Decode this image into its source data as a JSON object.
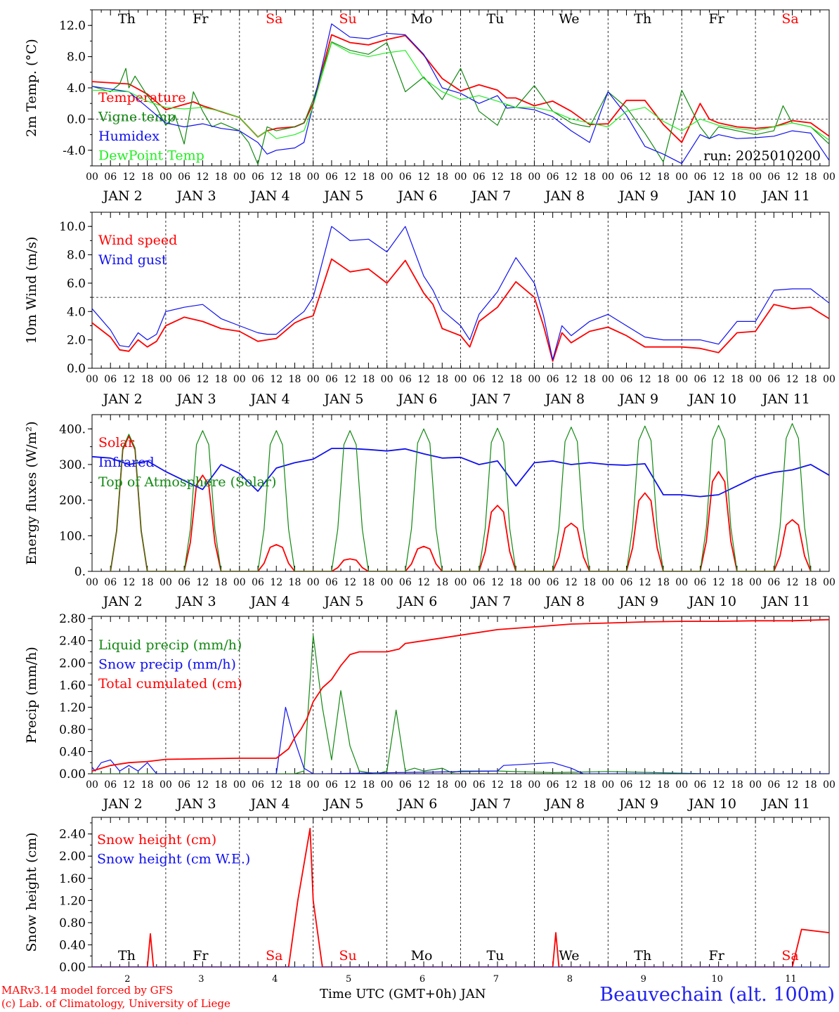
{
  "colors": {
    "red": "#ff0000",
    "green": "#118811",
    "blue": "#1010ee",
    "lightgreen": "#22ee22",
    "black": "#000000"
  },
  "footer": {
    "model": "MARv3.14 model forced by GFS",
    "copyright": "(c) Lab. of Climatology, University of Liege",
    "time_axis": "Time UTC (GMT+0h) JAN",
    "station": "Beauvechain (alt. 100m)"
  },
  "chart_data": [
    {
      "type": "line",
      "ylabel": "2m Temp. (°C)",
      "ylim": [
        -6,
        14
      ],
      "yticks": [
        "12.0",
        "8.0",
        "4.0",
        "0.0",
        "-4.0"
      ],
      "ytick_values": [
        12,
        8,
        4,
        0,
        -4
      ],
      "ref_line": 0,
      "day_names": [
        "Th",
        "Fr",
        "Sa",
        "Su",
        "Mo",
        "Tu",
        "We",
        "Th",
        "Fr",
        "Sa"
      ],
      "weekend_days": [
        2,
        3,
        9
      ],
      "run_label": "run: 2025010200",
      "x_unit": "hours since JAN 2 00 UTC",
      "series": [
        {
          "name": "Temperature",
          "color": "red",
          "x": [
            0,
            12,
            18,
            24,
            33,
            36,
            48,
            54,
            57,
            60,
            66,
            69,
            72,
            78,
            84,
            90,
            96,
            102,
            108,
            114,
            120,
            126,
            132,
            135,
            138,
            144,
            150,
            156,
            162,
            168,
            174,
            180,
            186,
            192,
            198,
            201,
            204,
            210,
            216,
            222,
            228,
            234,
            240
          ],
          "y": [
            4.8,
            4.5,
            3.2,
            1.2,
            2.2,
            1.7,
            0.2,
            -2.3,
            -1.5,
            -1.2,
            -1.0,
            -0.5,
            2,
            10.8,
            9.8,
            9.5,
            10.2,
            10.7,
            8.2,
            5.2,
            3.6,
            4.4,
            3.7,
            2.7,
            2.7,
            1.7,
            2.3,
            1.0,
            -0.7,
            -0.6,
            2.4,
            2.4,
            -0.7,
            -3.0,
            2.0,
            0,
            -0.5,
            -1.0,
            -1.2,
            -1.0,
            -0.2,
            -0.5,
            -2.2
          ]
        },
        {
          "name": "Vigne temp",
          "color": "green",
          "x": [
            0,
            6,
            9,
            11,
            12,
            14,
            18,
            21,
            24,
            27,
            30,
            33,
            36,
            39,
            42,
            48,
            51,
            54,
            57,
            60,
            66,
            69,
            72,
            78,
            84,
            90,
            96,
            102,
            108,
            114,
            120,
            126,
            132,
            135,
            138,
            144,
            150,
            156,
            159,
            162,
            168,
            174,
            180,
            186,
            192,
            198,
            201,
            204,
            210,
            216,
            222,
            225,
            228,
            234,
            240
          ],
          "y": [
            4.2,
            3.5,
            4.5,
            6.5,
            4,
            5.5,
            3,
            1.5,
            -0.8,
            0.5,
            -3.2,
            3.5,
            1,
            -1,
            -0.5,
            -1.5,
            -3,
            -5.8,
            -1,
            -1.5,
            -1,
            -0.5,
            2.5,
            9.9,
            8.8,
            8.3,
            9.8,
            3.5,
            5.4,
            2.5,
            6.5,
            1,
            -0.8,
            1.8,
            1.5,
            4.3,
            1,
            -0.5,
            -0.8,
            -1,
            3.5,
            1.5,
            -1.8,
            -5.5,
            3.7,
            -1,
            -2.5,
            -1,
            -1.5,
            -2,
            -1.5,
            1.7,
            -0.5,
            -1,
            -3.2
          ]
        },
        {
          "name": "Humidex",
          "color": "blue",
          "x": [
            0,
            12,
            18,
            24,
            30,
            36,
            42,
            48,
            54,
            57,
            60,
            66,
            69,
            72,
            78,
            84,
            90,
            96,
            102,
            108,
            114,
            120,
            126,
            132,
            135,
            138,
            144,
            150,
            156,
            162,
            168,
            174,
            180,
            186,
            192,
            198,
            201,
            204,
            210,
            216,
            222,
            228,
            234,
            240
          ],
          "y": [
            4.2,
            3.5,
            1.5,
            -0.5,
            -1,
            -0.6,
            -1.2,
            -1.5,
            -3,
            -4.5,
            -4,
            -3.7,
            -3.0,
            1.8,
            12.2,
            10.5,
            10.3,
            11,
            10.8,
            8.3,
            4,
            3.3,
            2.0,
            3,
            1.4,
            1.5,
            1.2,
            0.3,
            -1.5,
            -3.0,
            3.5,
            0.5,
            -3.5,
            -4.5,
            -5.7,
            -2,
            -2.5,
            -2,
            -2.5,
            -2.4,
            -2.2,
            -1.5,
            -1.8,
            -5.3
          ]
        },
        {
          "name": "DewPoint Temp",
          "color": "lightgreen",
          "x": [
            0,
            12,
            18,
            24,
            30,
            36,
            42,
            48,
            54,
            57,
            60,
            66,
            69,
            72,
            78,
            84,
            90,
            96,
            102,
            108,
            114,
            120,
            126,
            132,
            138,
            144,
            150,
            156,
            162,
            168,
            174,
            180,
            186,
            192,
            198,
            204,
            210,
            216,
            222,
            228,
            234,
            240
          ],
          "y": [
            3.7,
            3.5,
            2.3,
            1.5,
            1.3,
            1.5,
            1.0,
            0.2,
            -2.3,
            -1.5,
            -2.5,
            -2,
            -1.5,
            1.7,
            9.8,
            8.5,
            8,
            8.5,
            8.8,
            5.2,
            3.5,
            2.5,
            3,
            2.3,
            1.5,
            1.5,
            1,
            0,
            -0.5,
            -1,
            1.0,
            1.5,
            -0.3,
            -1.5,
            0,
            -0.8,
            -1.2,
            -1.5,
            -1.0,
            -0.5,
            -1.0,
            -2.7
          ]
        }
      ]
    },
    {
      "type": "line",
      "ylabel": "10m Wind (m/s)",
      "ylim": [
        0,
        11
      ],
      "yticks": [
        "10.0",
        "8.0",
        "6.0",
        "4.0",
        "2.0",
        "0.0"
      ],
      "ytick_values": [
        10,
        8,
        6,
        4,
        2,
        0
      ],
      "ref_line": 5,
      "series": [
        {
          "name": "Wind speed",
          "color": "red",
          "x": [
            0,
            6,
            9,
            12,
            15,
            18,
            21,
            24,
            30,
            36,
            42,
            48,
            54,
            57,
            60,
            66,
            69,
            72,
            78,
            84,
            90,
            96,
            102,
            108,
            111,
            114,
            120,
            123,
            126,
            132,
            138,
            144,
            147,
            150,
            153,
            156,
            162,
            168,
            174,
            180,
            186,
            192,
            198,
            204,
            210,
            216,
            222,
            228,
            234,
            240
          ],
          "y": [
            3.2,
            2.2,
            1.3,
            1.2,
            2,
            1.5,
            1.9,
            3,
            3.6,
            3.3,
            2.8,
            2.6,
            1.9,
            2,
            2.1,
            3.2,
            3.5,
            3.7,
            7.7,
            6.8,
            7.0,
            6.0,
            7.6,
            5.3,
            4.5,
            2.8,
            2.3,
            1.5,
            3.3,
            4.3,
            6.1,
            5.0,
            3,
            0.5,
            2.5,
            1.8,
            2.6,
            2.9,
            2.3,
            1.5,
            1.5,
            1.5,
            1.4,
            1.1,
            2.5,
            2.6,
            4.5,
            4.2,
            4.3,
            3.5
          ]
        },
        {
          "name": "Wind gust",
          "color": "blue",
          "x": [
            0,
            6,
            9,
            12,
            15,
            18,
            21,
            24,
            30,
            36,
            42,
            48,
            54,
            57,
            60,
            66,
            69,
            72,
            78,
            84,
            90,
            96,
            102,
            108,
            111,
            114,
            120,
            123,
            126,
            132,
            138,
            144,
            147,
            150,
            153,
            156,
            162,
            168,
            174,
            180,
            186,
            192,
            198,
            204,
            210,
            216,
            222,
            228,
            234,
            240
          ],
          "y": [
            4.2,
            2.7,
            1.6,
            1.5,
            2.5,
            2,
            2.4,
            4,
            4.3,
            4.5,
            3.5,
            3.0,
            2.5,
            2.4,
            2.4,
            3.5,
            4,
            5.0,
            10,
            9.0,
            9.1,
            8.2,
            10,
            6.5,
            5.5,
            4.1,
            3.0,
            2.0,
            3.8,
            5.4,
            7.8,
            6.0,
            3.7,
            0.6,
            3.0,
            2.3,
            3.3,
            3.8,
            3.0,
            2.2,
            2,
            2,
            2.0,
            1.7,
            3.3,
            3.3,
            5.5,
            5.6,
            5.6,
            4.6
          ]
        }
      ]
    },
    {
      "type": "line",
      "ylabel": "Energy fluxes (W/m²)",
      "ylim": [
        0,
        440
      ],
      "yticks": [
        "400.",
        "300.",
        "200.",
        "100.",
        "0."
      ],
      "ytick_values": [
        400,
        300,
        200,
        100,
        0
      ],
      "series": [
        {
          "name": "Solar",
          "color": "red",
          "diurnal_peaks": [
            380,
            270,
            75,
            35,
            70,
            185,
            135,
            220,
            280,
            145
          ]
        },
        {
          "name": "Infrared",
          "color": "blue",
          "x": [
            0,
            6,
            12,
            18,
            24,
            30,
            36,
            42,
            48,
            54,
            60,
            66,
            72,
            78,
            84,
            90,
            96,
            102,
            108,
            114,
            120,
            126,
            132,
            138,
            144,
            150,
            156,
            162,
            168,
            174,
            180,
            186,
            192,
            198,
            204,
            210,
            216,
            222,
            228,
            234,
            240
          ],
          "y": [
            322,
            318,
            300,
            310,
            280,
            255,
            230,
            300,
            275,
            225,
            290,
            305,
            315,
            345,
            345,
            342,
            338,
            344,
            330,
            318,
            320,
            300,
            310,
            240,
            305,
            310,
            300,
            305,
            300,
            298,
            302,
            215,
            215,
            210,
            215,
            240,
            265,
            278,
            285,
            300,
            270
          ]
        },
        {
          "name": "Top of Atmosphere (Solar)",
          "color": "green",
          "diurnal_peaks": [
            385,
            395,
            395,
            395,
            400,
            402,
            405,
            408,
            410,
            415
          ]
        }
      ]
    },
    {
      "type": "line",
      "ylabel": "Precip (mm/h)",
      "ylim": [
        0,
        2.84
      ],
      "yticks": [
        "2.80",
        "2.40",
        "2.00",
        "1.60",
        "1.20",
        "0.80",
        "0.40",
        "0.00"
      ],
      "ytick_values": [
        2.8,
        2.4,
        2.0,
        1.6,
        1.2,
        0.8,
        0.4,
        0.0
      ],
      "series": [
        {
          "name": "Liquid precip (mm/h)",
          "color": "green",
          "x": [
            0,
            66,
            69,
            72,
            75,
            78,
            81,
            84,
            87,
            90,
            93,
            96,
            99,
            102,
            105,
            108,
            114,
            117,
            120,
            132,
            150,
            168,
            200,
            240
          ],
          "y": [
            0,
            0,
            0.05,
            2.5,
            1.2,
            0.25,
            1.5,
            0.5,
            0.05,
            0.02,
            0,
            0.05,
            1.15,
            0.05,
            0.1,
            0.05,
            0.1,
            0.02,
            0.05,
            0.05,
            0.02,
            0.04,
            0,
            0
          ]
        },
        {
          "name": "Snow precip (mm/h)",
          "color": "blue",
          "x": [
            0,
            1,
            3,
            6,
            9,
            12,
            15,
            18,
            21,
            24,
            60,
            63,
            66,
            69,
            72,
            75,
            132,
            134,
            150,
            156,
            160,
            240
          ],
          "y": [
            0.12,
            0.05,
            0.2,
            0.25,
            0.05,
            0.15,
            0.05,
            0.2,
            0,
            0,
            0,
            1.2,
            0.6,
            0.1,
            0,
            0,
            0.05,
            0.15,
            0.2,
            0.1,
            0,
            0
          ]
        },
        {
          "name": "Total cumulated (cm)",
          "color": "red",
          "x": [
            0,
            6,
            12,
            18,
            24,
            36,
            48,
            60,
            64,
            66,
            68,
            70,
            72,
            75,
            78,
            81,
            84,
            87,
            90,
            96,
            100,
            102,
            108,
            114,
            120,
            132,
            144,
            156,
            168,
            180,
            192,
            204,
            216,
            228,
            240
          ],
          "y": [
            0.05,
            0.15,
            0.2,
            0.22,
            0.26,
            0.27,
            0.28,
            0.28,
            0.45,
            0.65,
            0.8,
            1.0,
            1.3,
            1.55,
            1.7,
            1.95,
            2.15,
            2.2,
            2.2,
            2.2,
            2.25,
            2.35,
            2.4,
            2.45,
            2.5,
            2.6,
            2.65,
            2.7,
            2.72,
            2.74,
            2.75,
            2.75,
            2.76,
            2.76,
            2.78
          ]
        }
      ]
    },
    {
      "type": "line",
      "ylabel": "Snow height (cm)",
      "ylim": [
        0,
        2.7
      ],
      "yticks": [
        "2.40",
        "2.00",
        "1.60",
        "1.20",
        "0.80",
        "0.40",
        "0.00"
      ],
      "ytick_values": [
        2.4,
        2.0,
        1.6,
        1.2,
        0.8,
        0.4,
        0.0
      ],
      "day_names": [
        "Th",
        "Fr",
        "Sa",
        "Su",
        "Mo",
        "Tu",
        "We",
        "Th",
        "Fr",
        "Sa"
      ],
      "weekend_days": [
        2,
        3,
        9
      ],
      "day_numbers": [
        "2",
        "3",
        "4",
        "5",
        "6",
        "7",
        "8",
        "9",
        "10",
        "11"
      ],
      "series": [
        {
          "name": "Snow height (cm)",
          "color": "red",
          "x": [
            0,
            18,
            19,
            20,
            64,
            67,
            71,
            72,
            75,
            150,
            151,
            152,
            228,
            231,
            240
          ],
          "y": [
            0,
            0,
            0.6,
            0,
            0,
            1.2,
            2.5,
            1.2,
            0,
            0,
            0.62,
            0,
            0,
            0.68,
            0.62
          ]
        },
        {
          "name": "Snow height (cm W.E.)",
          "color": "blue",
          "x": [
            0,
            240
          ],
          "y": [
            0,
            0
          ]
        }
      ]
    }
  ],
  "x_axis": {
    "hour_ticks": [
      "00",
      "06",
      "12",
      "18"
    ],
    "final_tick": "00",
    "day_labels": [
      "JAN  2",
      "JAN  3",
      "JAN  4",
      "JAN  5",
      "JAN  6",
      "JAN  7",
      "JAN  8",
      "JAN  9",
      "JAN 10",
      "JAN 11"
    ]
  }
}
